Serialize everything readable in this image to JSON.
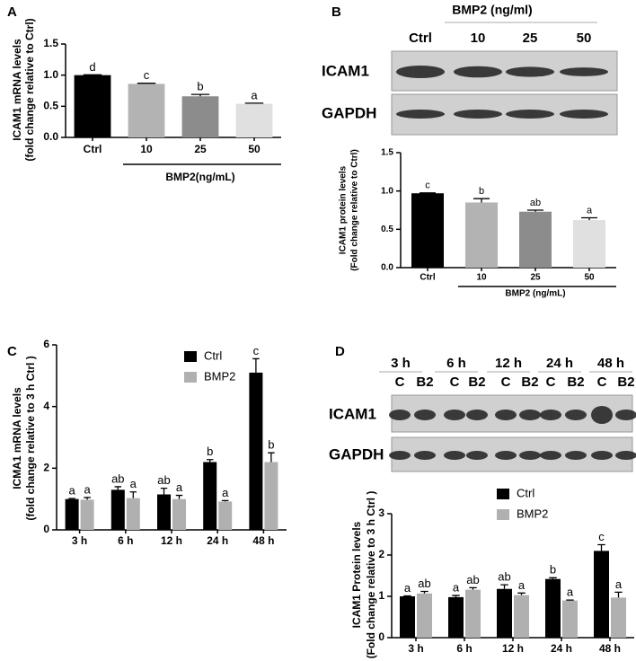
{
  "chart_data": [
    {
      "type": "bar",
      "panel_label": "A",
      "y_label": [
        "ICAM1 mRNA levels",
        "(fold change relative to Ctrl)"
      ],
      "categories": [
        "Ctrl",
        "10",
        "25",
        "50"
      ],
      "values": [
        1.0,
        0.86,
        0.66,
        0.54
      ],
      "errors": [
        0.005,
        0.01,
        0.03,
        0.01
      ],
      "letters": [
        "d",
        "c",
        "b",
        "a"
      ],
      "colors": [
        "#000000",
        "#b3b3b3",
        "#8c8c8c",
        "#e0e0e0"
      ],
      "group_label": "BMP2(ng/mL)",
      "ylim": [
        0,
        1.5
      ],
      "yticks": [
        {
          "value": 0,
          "label": "0.0"
        },
        0.5,
        {
          "value": 1,
          "label": "1.0"
        },
        1.5
      ]
    },
    {
      "type": "bar",
      "panel_label": "B",
      "y_label": [
        "ICAM1 protein levels",
        "(Fold change relative to Ctrl)"
      ],
      "blot": {
        "title": "BMP2 (ng/ml)",
        "lanes": [
          "Ctrl",
          "10",
          "25",
          "50"
        ],
        "rows": [
          "ICAM1",
          "GAPDH"
        ]
      },
      "categories": [
        "Ctrl",
        "10",
        "25",
        "50"
      ],
      "values": [
        0.97,
        0.85,
        0.73,
        0.62
      ],
      "errors": [
        0.005,
        0.05,
        0.02,
        0.03
      ],
      "letters": [
        "c",
        "b",
        "ab",
        "a"
      ],
      "colors": [
        "#000000",
        "#b3b3b3",
        "#8c8c8c",
        "#e0e0e0"
      ],
      "group_label": "BMP2 (ng/mL)",
      "ylim": [
        0,
        1.5
      ],
      "yticks": [
        {
          "value": 0,
          "label": "0.0"
        },
        0.5,
        {
          "value": 1,
          "label": "1.0"
        },
        1.5
      ]
    },
    {
      "type": "grouped_bar",
      "panel_label": "C",
      "y_label": [
        "ICMA1 mRNA levels",
        "(fold change relative to 3 h Ctrl )"
      ],
      "categories": [
        "3 h",
        "6 h",
        "12 h",
        "24 h",
        "48 h"
      ],
      "series": [
        {
          "name": "Ctrl",
          "color": "#000000",
          "values": [
            1.0,
            1.3,
            1.15,
            2.2,
            5.1
          ],
          "errors": [
            0.02,
            0.1,
            0.2,
            0.08,
            0.45
          ],
          "letters": [
            "a",
            "ab",
            "ab",
            "b",
            "c"
          ]
        },
        {
          "name": "BMP2",
          "color": "#b0b0b0",
          "values": [
            0.98,
            1.03,
            1.0,
            0.92,
            2.2
          ],
          "errors": [
            0.07,
            0.2,
            0.12,
            0.03,
            0.3
          ],
          "letters": [
            "a",
            "a",
            "a",
            "a",
            "b"
          ]
        }
      ],
      "legend": "upper center",
      "ylim": [
        0,
        6
      ],
      "yticks": [
        0,
        2,
        4,
        6
      ]
    },
    {
      "type": "grouped_bar",
      "panel_label": "D",
      "y_label": [
        "ICAM1 Protein levels",
        "(Fold change relative to 3 h Ctrl )"
      ],
      "blot": {
        "groups": [
          "3 h",
          "6 h",
          "12 h",
          "24 h",
          "48 h"
        ],
        "lanes": [
          "C",
          "B2",
          "C",
          "B2",
          "C",
          "B2",
          "C",
          "B2",
          "C",
          "B2"
        ],
        "rows": [
          "ICAM1",
          "GAPDH"
        ]
      },
      "categories": [
        "3 h",
        "6 h",
        "12 h",
        "24 h",
        "48 h"
      ],
      "series": [
        {
          "name": "Ctrl",
          "color": "#000000",
          "values": [
            1.0,
            0.98,
            1.18,
            1.42,
            2.1
          ],
          "errors": [
            0.01,
            0.04,
            0.1,
            0.03,
            0.15
          ],
          "letters": [
            "a",
            "a",
            "ab",
            "b",
            "c"
          ]
        },
        {
          "name": "BMP2",
          "color": "#b0b0b0",
          "values": [
            1.07,
            1.16,
            1.03,
            0.9,
            0.97
          ],
          "errors": [
            0.05,
            0.05,
            0.05,
            0.01,
            0.13
          ],
          "letters": [
            "ab",
            "ab",
            "a",
            "a",
            "a"
          ]
        }
      ],
      "legend": "upper center",
      "ylim": [
        0,
        3
      ],
      "yticks": [
        0,
        1,
        2,
        3
      ]
    }
  ]
}
